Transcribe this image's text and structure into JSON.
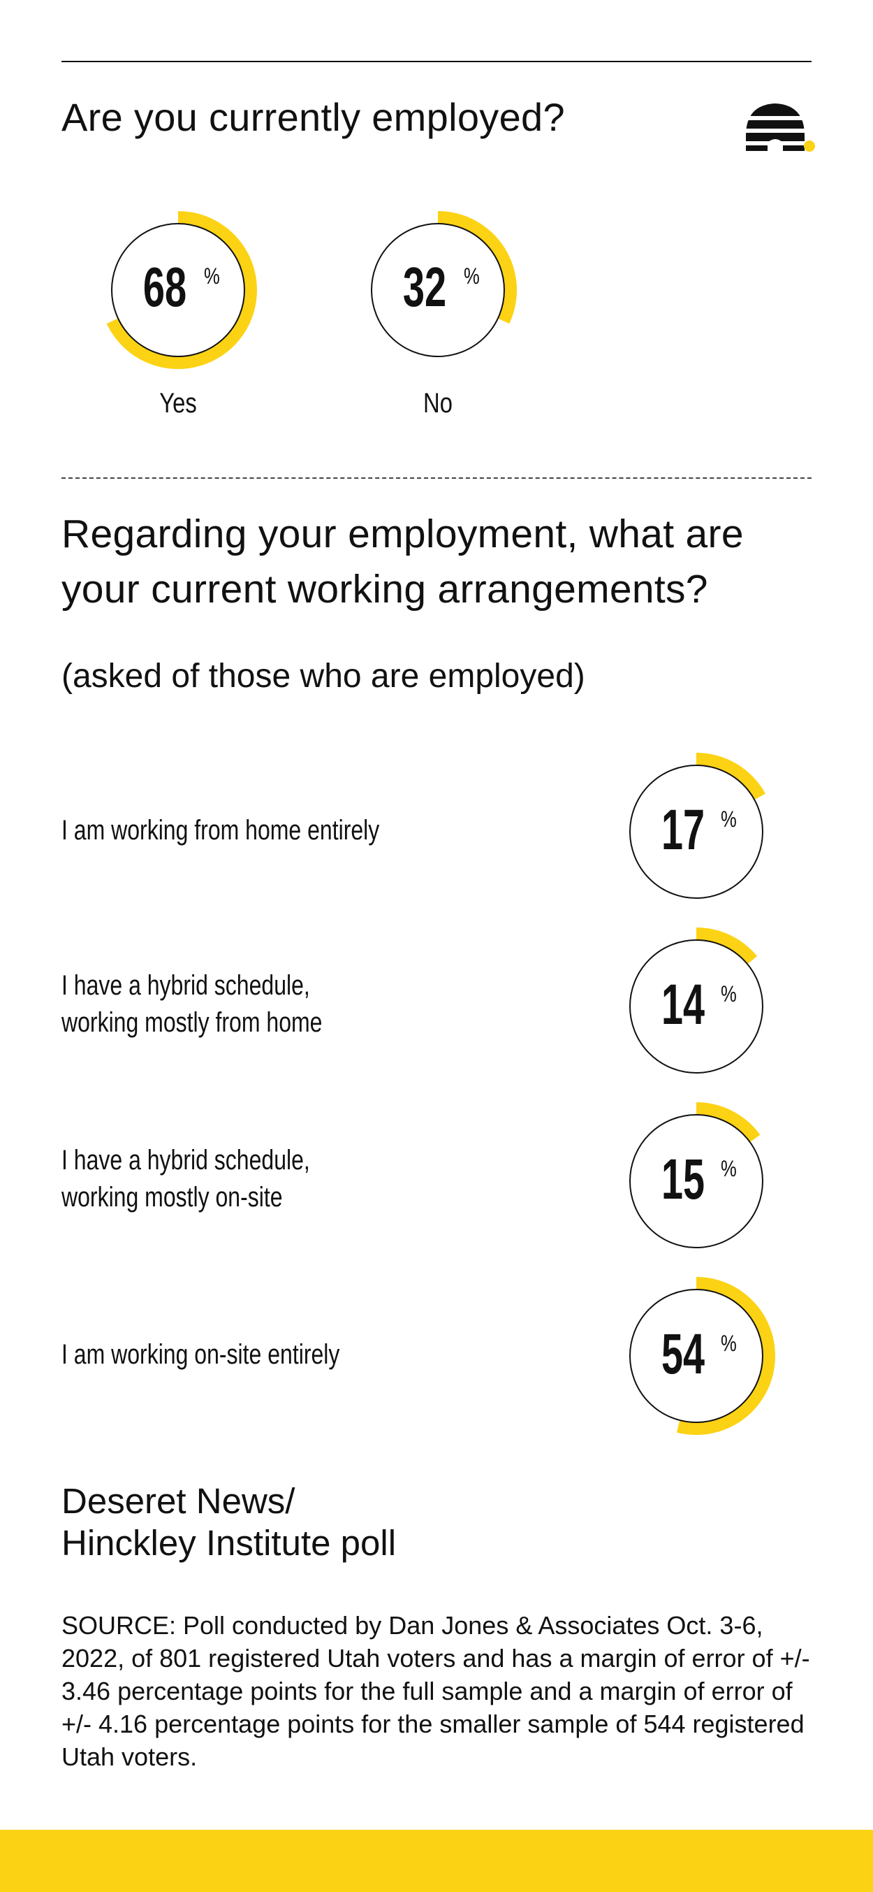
{
  "colors": {
    "accent": "#FCD214",
    "ink": "#111111",
    "background": "#ffffff"
  },
  "section1": {
    "question": "Are you currently employed?"
  },
  "section2": {
    "question": "Regarding your employment, what are your current working arrangements?",
    "subtitle": "(asked of those who are employed)"
  },
  "logo_icon": "beehive-icon",
  "chart_data": [
    {
      "type": "donut",
      "title": "Are you currently employed?",
      "categories": [
        "Yes",
        "No"
      ],
      "values": [
        68,
        32
      ],
      "unit": "%"
    },
    {
      "type": "donut",
      "title": "Regarding your employment, what are your current working arrangements?",
      "subtitle": "(asked of those who are employed)",
      "categories": [
        "I am working from home entirely",
        "I have a hybrid schedule,\nworking mostly from home",
        "I have a hybrid schedule,\nworking mostly on-site",
        "I am working on-site entirely"
      ],
      "values": [
        17,
        14,
        15,
        54
      ],
      "unit": "%"
    }
  ],
  "footer": {
    "brand": "Deseret News/\nHinckley Institute poll",
    "source": "SOURCE: Poll conducted by Dan Jones & Associates Oct. 3-6, 2022, of 801 registered Utah voters and has a margin of error of +/- 3.46 percentage points for the full sample and a margin of error of +/- 4.16 percentage points for the smaller sample of 544 registered Utah voters."
  }
}
